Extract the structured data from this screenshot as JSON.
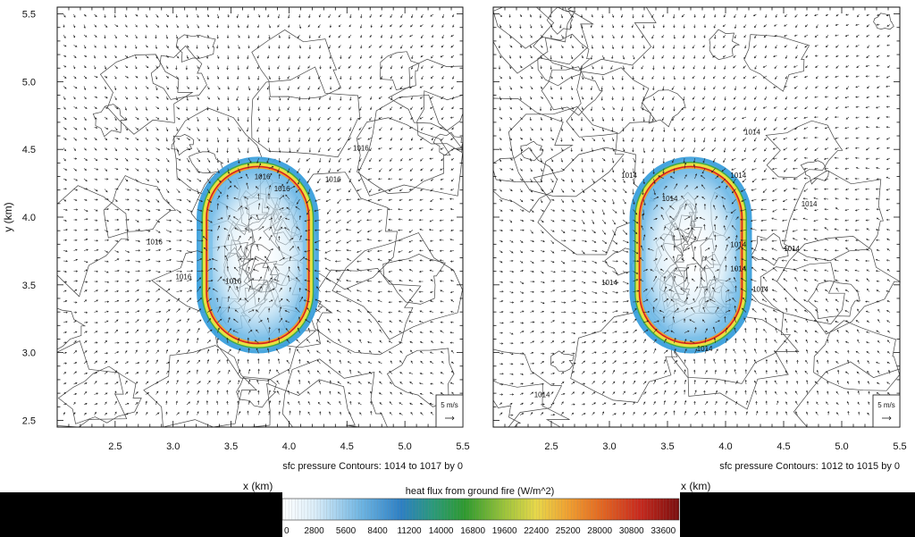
{
  "chart_data": {
    "type": "heatmap",
    "figure": {
      "ylabel": "y (km)",
      "xlabel": "x (km)"
    },
    "panels": [
      {
        "id": "left",
        "xlim": [
          2.0,
          5.5
        ],
        "ylim": [
          2.45,
          5.55
        ],
        "xticks": [
          "2.5",
          "3.0",
          "3.5",
          "4.0",
          "4.5",
          "5.0",
          "5.5"
        ],
        "yticks": [
          "2.5",
          "3.0",
          "3.5",
          "4.0",
          "4.5",
          "5.0",
          "5.5"
        ],
        "contour_note": "sfc pressure Contours: 1014 to 1017 by 0",
        "reference_vector": "5 m/s",
        "fire_ring": {
          "center_x": 3.73,
          "center_y": 3.72,
          "half_width_km": 0.45,
          "half_height_km": 0.66
        },
        "contour_labels": [
          {
            "text": "1016",
            "x": 4.62,
            "y": 4.49
          },
          {
            "text": "1016",
            "x": 3.77,
            "y": 4.28
          },
          {
            "text": "1016",
            "x": 3.94,
            "y": 4.19
          },
          {
            "text": "1016",
            "x": 4.38,
            "y": 4.26
          },
          {
            "text": "1016",
            "x": 2.84,
            "y": 3.8
          },
          {
            "text": "1016",
            "x": 3.09,
            "y": 3.54
          },
          {
            "text": "1016",
            "x": 3.52,
            "y": 3.51
          }
        ]
      },
      {
        "id": "right",
        "xlim": [
          2.0,
          5.5
        ],
        "ylim": [
          2.45,
          5.55
        ],
        "xticks": [
          "2.5",
          "3.0",
          "3.5",
          "4.0",
          "4.5",
          "5.0",
          "5.5"
        ],
        "yticks": [],
        "contour_note": "sfc pressure Contours: 1012 to 1015 by 0",
        "reference_vector": "5 m/s",
        "fire_ring": {
          "center_x": 3.7,
          "center_y": 3.72,
          "half_width_km": 0.45,
          "half_height_km": 0.66
        },
        "contour_labels": [
          {
            "text": "1014",
            "x": 4.23,
            "y": 4.61
          },
          {
            "text": "1014",
            "x": 3.17,
            "y": 4.29
          },
          {
            "text": "1014",
            "x": 4.11,
            "y": 4.29
          },
          {
            "text": "1014",
            "x": 3.52,
            "y": 4.12
          },
          {
            "text": "1014",
            "x": 4.72,
            "y": 4.08
          },
          {
            "text": "1014",
            "x": 4.11,
            "y": 3.78
          },
          {
            "text": "1014",
            "x": 4.57,
            "y": 3.75
          },
          {
            "text": "1014",
            "x": 4.11,
            "y": 3.6
          },
          {
            "text": "1014",
            "x": 3.0,
            "y": 3.5
          },
          {
            "text": "1014",
            "x": 4.3,
            "y": 3.45
          },
          {
            "text": "1014",
            "x": 3.82,
            "y": 3.01
          },
          {
            "text": "1014",
            "x": 2.42,
            "y": 2.67
          }
        ]
      }
    ],
    "colorbar": {
      "title": "heat flux from ground fire  (W/m^2)",
      "range": [
        0,
        35000
      ],
      "tick_labels": [
        "0",
        "2800",
        "5600",
        "8400",
        "11200",
        "14000",
        "16800",
        "19600",
        "22400",
        "25200",
        "28000",
        "30800",
        "33600"
      ],
      "tick_values": [
        0,
        2800,
        5600,
        8400,
        11200,
        14000,
        16800,
        19600,
        22400,
        25200,
        28000,
        30800,
        33600
      ]
    },
    "colors": {
      "fire_peak": "#d62020",
      "fire_mid": "#e8e040",
      "fire_low": "#3aa0d8",
      "contour": "#444444",
      "vector": "#222222",
      "black_band": "#000000"
    }
  }
}
